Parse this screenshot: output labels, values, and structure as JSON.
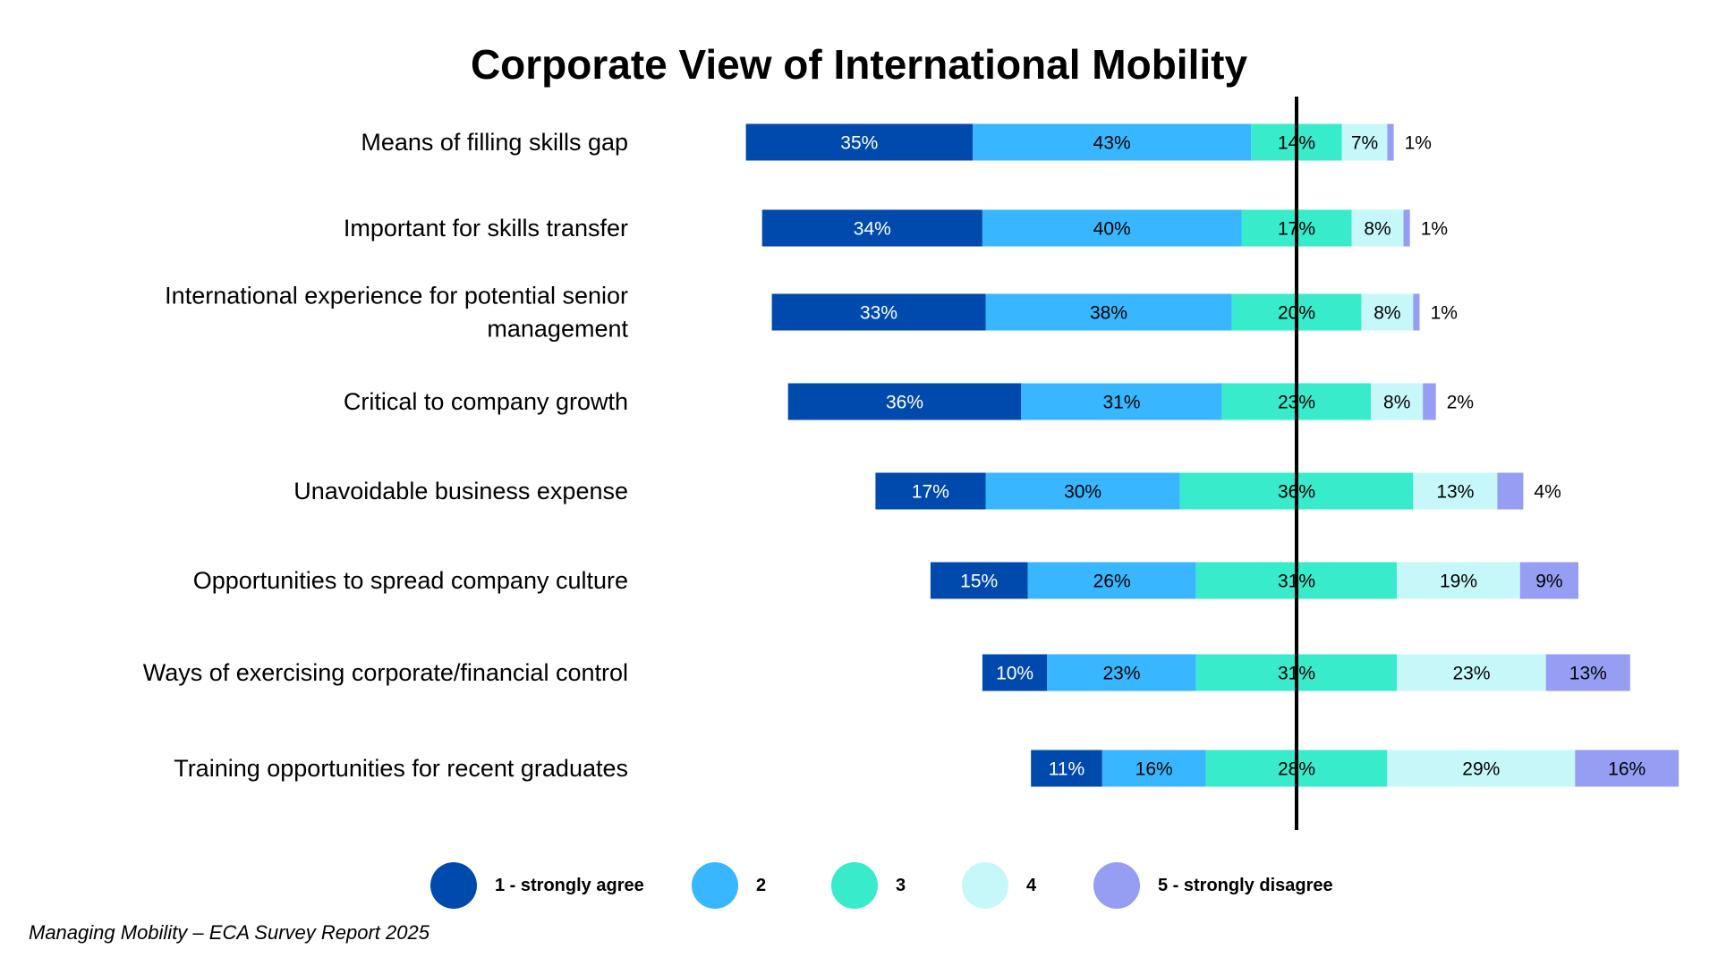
{
  "chart_data": {
    "type": "bar",
    "subtype": "diverging-stacked-horizontal",
    "title": "Corporate View of International Mobility",
    "categories": [
      [
        "Means of filling skills gap"
      ],
      [
        "Important for skills transfer"
      ],
      [
        "International experience for potential senior",
        "management"
      ],
      [
        "Critical to company growth"
      ],
      [
        "Unavoidable business expense"
      ],
      [
        "Opportunities to spread company culture"
      ],
      [
        "Ways of exercising corporate/financial control"
      ],
      [
        "Training opportunities for recent graduates"
      ]
    ],
    "series": [
      {
        "name": "1 - strongly agree",
        "color": "#004AAD",
        "label_color": "#ffffff",
        "values": [
          35,
          34,
          33,
          36,
          17,
          15,
          10,
          11
        ]
      },
      {
        "name": "2",
        "color": "#38B6FF",
        "label_color": "#000000",
        "values": [
          43,
          40,
          38,
          31,
          30,
          26,
          23,
          16
        ]
      },
      {
        "name": "3",
        "color": "#38EBCB",
        "label_color": "#000000",
        "values": [
          14,
          17,
          20,
          23,
          36,
          31,
          31,
          28
        ]
      },
      {
        "name": "4",
        "color": "#C6F8FA",
        "label_color": "#000000",
        "values": [
          7,
          8,
          8,
          8,
          13,
          19,
          23,
          29
        ]
      },
      {
        "name": "5 - strongly disagree",
        "color": "#959EF2",
        "label_color": "#000000",
        "values": [
          1,
          1,
          1,
          2,
          4,
          9,
          13,
          16
        ]
      }
    ],
    "center_line": "midpoint of category 3",
    "legend_position": "bottom",
    "grid": false
  },
  "footer": {
    "source": "Managing Mobility – ECA Survey Report 2025"
  }
}
